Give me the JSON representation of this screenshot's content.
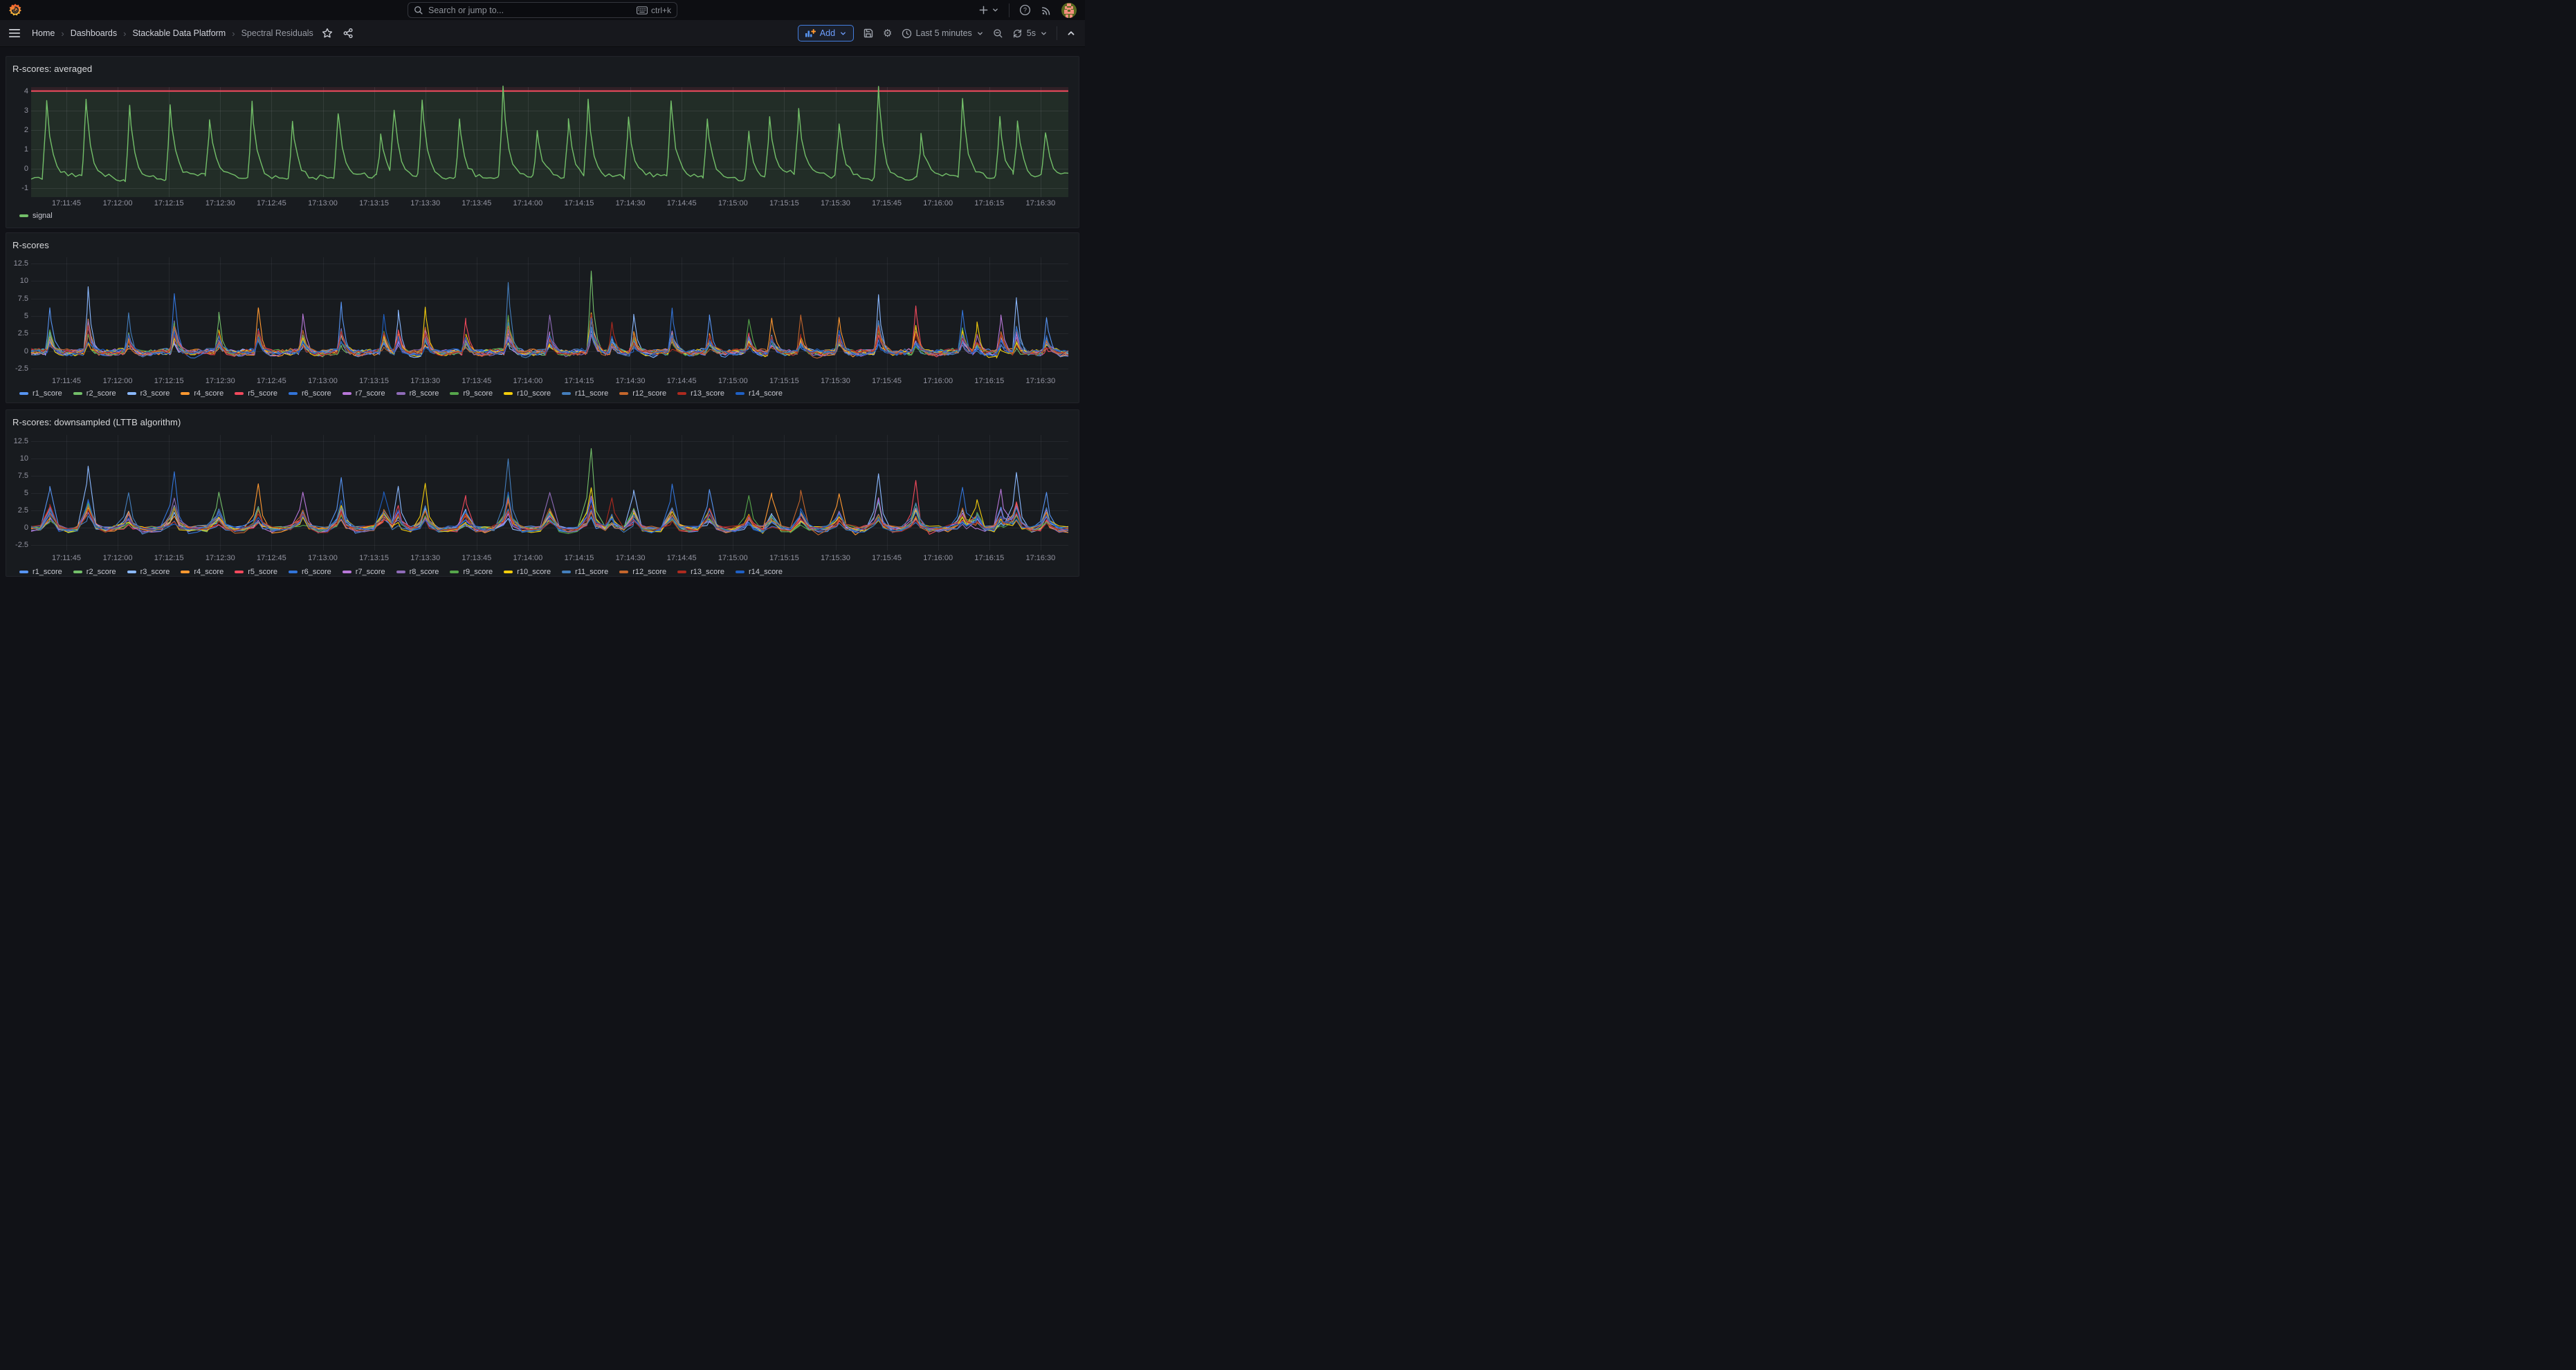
{
  "topbar": {
    "search_placeholder": "Search or jump to...",
    "shortcut_label": "ctrl+k"
  },
  "nav": {
    "breadcrumbs": [
      "Home",
      "Dashboards",
      "Stackable Data Platform",
      "Spectral Residuals"
    ]
  },
  "toolbar": {
    "add_label": "Add",
    "time_range_label": "Last 5 minutes",
    "refresh_interval_label": "5s"
  },
  "icons": {
    "gear": "⚙",
    "breadcrumb_separator": "›"
  },
  "chart_data": [
    {
      "type": "line",
      "title": "R-scores: averaged",
      "legend_position": "bottom-left",
      "grid": true,
      "x_tick_labels": [
        "17:11:45",
        "17:12:00",
        "17:12:15",
        "17:12:30",
        "17:12:45",
        "17:13:00",
        "17:13:15",
        "17:13:30",
        "17:13:45",
        "17:14:00",
        "17:14:15",
        "17:14:30",
        "17:14:45",
        "17:15:00",
        "17:15:15",
        "17:15:30",
        "17:15:45",
        "17:16:00",
        "17:16:15",
        "17:16:30"
      ],
      "y_ticks": [
        4,
        3,
        2,
        1,
        0,
        -1
      ],
      "y_tick_labels": [
        "4",
        "3",
        "2",
        "1",
        "0",
        "-1"
      ],
      "ylim": [
        -1.45,
        4.2
      ],
      "threshold": {
        "value": 4,
        "color": "#F2495C",
        "above_fill": "rgba(242,73,92,0.12)",
        "below_fill": "rgba(115,191,105,0.11)"
      },
      "series": [
        {
          "name": "signal",
          "color": "#73BF69"
        }
      ],
      "baseline": -0.55,
      "events": [
        [
          0.015,
          3.2
        ],
        [
          0.053,
          3.0
        ],
        [
          0.095,
          2.9
        ],
        [
          0.134,
          3.05
        ],
        [
          0.172,
          2.1
        ],
        [
          0.213,
          3.0
        ],
        [
          0.252,
          2.2
        ],
        [
          0.296,
          2.5
        ],
        [
          0.337,
          1.2
        ],
        [
          0.35,
          2.4
        ],
        [
          0.377,
          3.0
        ],
        [
          0.413,
          2.3
        ],
        [
          0.455,
          3.7
        ],
        [
          0.488,
          1.5
        ],
        [
          0.518,
          2.2
        ],
        [
          0.537,
          3.1
        ],
        [
          0.576,
          2.3
        ],
        [
          0.617,
          3.0
        ],
        [
          0.652,
          2.2
        ],
        [
          0.692,
          1.5
        ],
        [
          0.712,
          2.2
        ],
        [
          0.74,
          2.4
        ],
        [
          0.779,
          2.0
        ],
        [
          0.817,
          3.9
        ],
        [
          0.858,
          1.3
        ],
        [
          0.898,
          3.0
        ],
        [
          0.934,
          2.2
        ],
        [
          0.951,
          1.9
        ],
        [
          0.978,
          1.5
        ]
      ]
    },
    {
      "type": "line",
      "title": "R-scores",
      "legend_position": "bottom-left",
      "grid": true,
      "x_tick_labels": [
        "17:11:45",
        "17:12:00",
        "17:12:15",
        "17:12:30",
        "17:12:45",
        "17:13:00",
        "17:13:15",
        "17:13:30",
        "17:13:45",
        "17:14:00",
        "17:14:15",
        "17:14:30",
        "17:14:45",
        "17:15:00",
        "17:15:15",
        "17:15:30",
        "17:15:45",
        "17:16:00",
        "17:16:15",
        "17:16:30"
      ],
      "y_ticks": [
        12.5,
        10,
        7.5,
        5,
        2.5,
        0,
        -2.5
      ],
      "y_tick_labels": [
        "12.5",
        "10",
        "7.5",
        "5",
        "2.5",
        "0",
        "-2.5"
      ],
      "ylim": [
        -3.4,
        13.4
      ],
      "series": [
        {
          "name": "r1_score",
          "color": "#5794F2"
        },
        {
          "name": "r2_score",
          "color": "#73BF69"
        },
        {
          "name": "r3_score",
          "color": "#8AB8FF"
        },
        {
          "name": "r4_score",
          "color": "#FF9830"
        },
        {
          "name": "r5_score",
          "color": "#F2495C"
        },
        {
          "name": "r6_score",
          "color": "#3274D9"
        },
        {
          "name": "r7_score",
          "color": "#B877D9"
        },
        {
          "name": "r8_score",
          "color": "#8F6BB8"
        },
        {
          "name": "r9_score",
          "color": "#56A64B"
        },
        {
          "name": "r10_score",
          "color": "#F2CC0C"
        },
        {
          "name": "r11_score",
          "color": "#447EBC"
        },
        {
          "name": "r12_score",
          "color": "#C4662C"
        },
        {
          "name": "r13_score",
          "color": "#AD2A1F"
        },
        {
          "name": "r14_score",
          "color": "#1F60C4"
        }
      ],
      "baseline": 0,
      "events": [
        [
          0.018,
          5.8,
          0
        ],
        [
          0.055,
          8.7,
          2
        ],
        [
          0.094,
          5.0,
          10
        ],
        [
          0.138,
          8.2,
          5
        ],
        [
          0.181,
          5.2,
          1
        ],
        [
          0.219,
          6.3,
          3
        ],
        [
          0.262,
          5.0,
          6
        ],
        [
          0.299,
          6.9,
          0
        ],
        [
          0.34,
          5.2,
          13
        ],
        [
          0.354,
          5.8,
          2
        ],
        [
          0.38,
          6.2,
          9
        ],
        [
          0.419,
          4.4,
          4
        ],
        [
          0.46,
          10.0,
          10
        ],
        [
          0.5,
          4.5,
          7
        ],
        [
          0.54,
          11.0,
          1
        ],
        [
          0.56,
          4.0,
          12
        ],
        [
          0.581,
          5.5,
          2
        ],
        [
          0.618,
          6.1,
          5
        ],
        [
          0.654,
          5.2,
          0
        ],
        [
          0.692,
          4.3,
          8
        ],
        [
          0.714,
          4.5,
          3
        ],
        [
          0.742,
          5.0,
          11
        ],
        [
          0.779,
          5.0,
          3
        ],
        [
          0.817,
          8.0,
          2
        ],
        [
          0.853,
          6.5,
          4
        ],
        [
          0.898,
          5.5,
          5
        ],
        [
          0.912,
          4.2,
          9
        ],
        [
          0.935,
          5.2,
          6
        ],
        [
          0.95,
          7.5,
          2
        ],
        [
          0.979,
          5.0,
          0
        ]
      ]
    },
    {
      "type": "line",
      "title": "R-scores: downsampled (LTTB algorithm)",
      "legend_position": "bottom-left",
      "grid": true,
      "downsampled": true,
      "x_tick_labels": [
        "17:11:45",
        "17:12:00",
        "17:12:15",
        "17:12:30",
        "17:12:45",
        "17:13:00",
        "17:13:15",
        "17:13:30",
        "17:13:45",
        "17:14:00",
        "17:14:15",
        "17:14:30",
        "17:14:45",
        "17:15:00",
        "17:15:15",
        "17:15:30",
        "17:15:45",
        "17:16:00",
        "17:16:15",
        "17:16:30"
      ],
      "y_ticks": [
        12.5,
        10,
        7.5,
        5,
        2.5,
        0,
        -2.5
      ],
      "y_tick_labels": [
        "12.5",
        "10",
        "7.5",
        "5",
        "2.5",
        "0",
        "-2.5"
      ],
      "ylim": [
        -3.3,
        13.4
      ],
      "series": [
        {
          "name": "r1_score",
          "color": "#5794F2"
        },
        {
          "name": "r2_score",
          "color": "#73BF69"
        },
        {
          "name": "r3_score",
          "color": "#8AB8FF"
        },
        {
          "name": "r4_score",
          "color": "#FF9830"
        },
        {
          "name": "r5_score",
          "color": "#F2495C"
        },
        {
          "name": "r6_score",
          "color": "#3274D9"
        },
        {
          "name": "r7_score",
          "color": "#B877D9"
        },
        {
          "name": "r8_score",
          "color": "#8F6BB8"
        },
        {
          "name": "r9_score",
          "color": "#56A64B"
        },
        {
          "name": "r10_score",
          "color": "#F2CC0C"
        },
        {
          "name": "r11_score",
          "color": "#447EBC"
        },
        {
          "name": "r12_score",
          "color": "#C4662C"
        },
        {
          "name": "r13_score",
          "color": "#AD2A1F"
        },
        {
          "name": "r14_score",
          "color": "#1F60C4"
        }
      ],
      "baseline": 0,
      "events": [
        [
          0.018,
          5.8,
          0
        ],
        [
          0.055,
          8.7,
          2
        ],
        [
          0.094,
          5.0,
          10
        ],
        [
          0.138,
          8.2,
          5
        ],
        [
          0.181,
          5.2,
          1
        ],
        [
          0.219,
          6.3,
          3
        ],
        [
          0.262,
          5.0,
          6
        ],
        [
          0.299,
          6.9,
          0
        ],
        [
          0.34,
          5.2,
          13
        ],
        [
          0.354,
          5.8,
          2
        ],
        [
          0.38,
          6.2,
          9
        ],
        [
          0.419,
          4.4,
          4
        ],
        [
          0.46,
          10.0,
          10
        ],
        [
          0.5,
          4.5,
          7
        ],
        [
          0.54,
          11.2,
          1
        ],
        [
          0.56,
          4.0,
          12
        ],
        [
          0.581,
          5.5,
          2
        ],
        [
          0.618,
          6.1,
          5
        ],
        [
          0.654,
          5.2,
          0
        ],
        [
          0.692,
          4.3,
          8
        ],
        [
          0.714,
          4.5,
          3
        ],
        [
          0.742,
          5.0,
          11
        ],
        [
          0.779,
          5.0,
          3
        ],
        [
          0.817,
          8.0,
          2
        ],
        [
          0.853,
          6.5,
          4
        ],
        [
          0.898,
          5.5,
          5
        ],
        [
          0.912,
          4.2,
          9
        ],
        [
          0.935,
          5.2,
          6
        ],
        [
          0.95,
          7.5,
          2
        ],
        [
          0.979,
          5.0,
          0
        ]
      ]
    }
  ]
}
